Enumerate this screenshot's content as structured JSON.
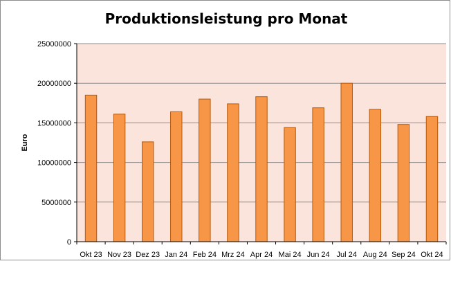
{
  "chart_data": {
    "type": "bar",
    "title": "Produktionsleistung pro Monat",
    "xlabel": "",
    "ylabel": "Euro",
    "ylim": [
      0,
      25000000
    ],
    "yticks": [
      0,
      5000000,
      10000000,
      15000000,
      20000000,
      25000000
    ],
    "grid": true,
    "legend": "none",
    "categories": [
      "Okt 23",
      "Nov 23",
      "Dez 23",
      "Jan 24",
      "Feb 24",
      "Mrz 24",
      "Apr 24",
      "Mai 24",
      "Jun 24",
      "Jul 24",
      "Aug 24",
      "Sep 24",
      "Okt 24"
    ],
    "values": [
      18500000,
      16100000,
      12600000,
      16400000,
      18000000,
      17400000,
      18300000,
      14400000,
      16900000,
      20000000,
      16700000,
      14800000,
      15800000
    ],
    "colors": {
      "bar_fill": "#f79646",
      "bar_stroke": "#b65708",
      "plot_background": "#fbe4dc",
      "gridline": "#8c8c8c"
    }
  }
}
